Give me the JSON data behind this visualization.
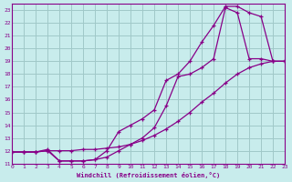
{
  "xlabel": "Windchill (Refroidissement éolien,°C)",
  "bg_color": "#c8ecec",
  "grid_color": "#a0c8c8",
  "line_color": "#880088",
  "xlim": [
    0,
    23
  ],
  "ylim": [
    11,
    23.5
  ],
  "yticks": [
    11,
    12,
    13,
    14,
    15,
    16,
    17,
    18,
    19,
    20,
    21,
    22,
    23
  ],
  "xticks": [
    0,
    1,
    2,
    3,
    4,
    5,
    6,
    7,
    8,
    9,
    10,
    11,
    12,
    13,
    14,
    15,
    16,
    17,
    18,
    19,
    20,
    21,
    22,
    23
  ],
  "curve1_x": [
    0,
    1,
    2,
    3,
    4,
    5,
    6,
    7,
    8,
    9,
    10,
    11,
    12,
    13,
    14,
    15,
    16,
    17,
    18,
    19,
    20,
    21,
    22,
    23
  ],
  "curve1_y": [
    11.9,
    11.9,
    11.9,
    12.0,
    12.0,
    12.0,
    12.1,
    12.1,
    12.2,
    12.3,
    12.5,
    12.8,
    13.2,
    13.7,
    14.3,
    15.0,
    15.8,
    16.5,
    17.3,
    18.0,
    18.5,
    18.8,
    19.0,
    19.0
  ],
  "curve2_x": [
    0,
    1,
    2,
    3,
    4,
    5,
    6,
    7,
    8,
    9,
    10,
    11,
    12,
    13,
    14,
    15,
    16,
    17,
    18,
    19,
    20,
    21,
    22,
    23
  ],
  "curve2_y": [
    11.9,
    11.9,
    11.9,
    12.0,
    11.2,
    11.2,
    11.2,
    11.3,
    11.5,
    12.0,
    12.5,
    13.0,
    13.8,
    15.5,
    17.8,
    18.0,
    18.5,
    19.2,
    23.2,
    22.8,
    19.2,
    19.2,
    19.0,
    19.0
  ],
  "curve3_x": [
    0,
    1,
    2,
    3,
    4,
    5,
    6,
    7,
    8,
    9,
    10,
    11,
    12,
    13,
    14,
    15,
    16,
    17,
    18,
    19,
    20,
    21,
    22,
    23
  ],
  "curve3_y": [
    11.9,
    11.9,
    11.9,
    12.1,
    11.2,
    11.2,
    11.2,
    11.3,
    12.0,
    13.5,
    14.0,
    14.5,
    15.2,
    17.5,
    18.0,
    19.0,
    20.5,
    21.8,
    23.3,
    23.3,
    22.8,
    22.5,
    19.0,
    19.0
  ]
}
